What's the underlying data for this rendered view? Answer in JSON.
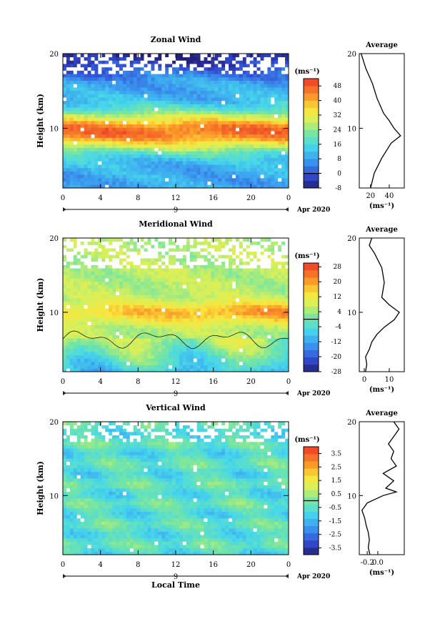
{
  "figure": {
    "xlabel": "Local Time",
    "date_label": "Apr 2020",
    "day_label": "9",
    "unit_label": "(ms⁻¹)",
    "average_title": "Average",
    "ylabel": "Height (km)"
  },
  "chart_data": [
    {
      "type": "heatmap",
      "title": "Zonal Wind",
      "ylabel": "Height (km)",
      "xlabel": "",
      "xlim": [
        0,
        24
      ],
      "ylim": [
        2,
        20
      ],
      "x_ticks": [
        "0",
        "4",
        "8",
        "12",
        "16",
        "20",
        "0"
      ],
      "y_ticks": [
        "10",
        "20"
      ],
      "colorbar": {
        "label": "(ms⁻¹)",
        "range": [
          -8,
          52
        ],
        "ticks": [
          "48",
          "40",
          "32",
          "24",
          "16",
          "8",
          "0",
          "-8"
        ]
      },
      "profile": {
        "heights_km": [
          2,
          4,
          6,
          8,
          9,
          10,
          11,
          12,
          14,
          16,
          18,
          20
        ],
        "values": [
          20,
          24,
          32,
          42,
          52,
          45,
          40,
          34,
          27,
          22,
          15,
          10
        ]
      },
      "average": {
        "title": "Average",
        "xlim": [
          8,
          56
        ],
        "x_ticks": [
          "20",
          "40"
        ],
        "xlabel": "(ms⁻¹)",
        "y_ticks": [
          "10",
          "20"
        ]
      }
    },
    {
      "type": "heatmap",
      "title": "Meridional Wind",
      "ylabel": "Height (km)",
      "xlabel": "",
      "xlim": [
        0,
        24
      ],
      "ylim": [
        2,
        20
      ],
      "x_ticks": [
        "0",
        "4",
        "8",
        "12",
        "16",
        "20",
        "0"
      ],
      "y_ticks": [
        "10",
        "20"
      ],
      "colorbar": {
        "label": "(ms⁻¹)",
        "range": [
          -28,
          30
        ],
        "ticks": [
          "28",
          "20",
          "12",
          "4",
          "-4",
          "-12",
          "-20",
          "-28"
        ]
      },
      "profile": {
        "heights_km": [
          2,
          3,
          4,
          5,
          6,
          7,
          8,
          9,
          10,
          11,
          12,
          14,
          16,
          18,
          19,
          20
        ],
        "values": [
          0.5,
          1,
          0.5,
          2,
          3,
          5,
          8,
          12,
          14,
          10,
          7,
          8,
          7,
          4,
          2,
          3
        ]
      },
      "average": {
        "title": "Average",
        "xlim": [
          -2,
          16
        ],
        "x_ticks": [
          "0",
          "10"
        ],
        "xlabel": "(ms⁻¹)",
        "y_ticks": [
          "10",
          "20"
        ]
      }
    },
    {
      "type": "heatmap",
      "title": "Vertical Wind",
      "ylabel": "Height (km)",
      "xlabel": "Local Time",
      "xlim": [
        0,
        24
      ],
      "ylim": [
        2,
        20
      ],
      "x_ticks": [
        "0",
        "4",
        "8",
        "12",
        "16",
        "20",
        "0"
      ],
      "y_ticks": [
        "10",
        "20"
      ],
      "colorbar": {
        "label": "(ms⁻¹)",
        "range": [
          -4,
          4
        ],
        "ticks": [
          "3.5",
          "2.5",
          "1.5",
          "0.5",
          "-0.5",
          "-1.5",
          "-2.5",
          "-3.5"
        ]
      },
      "profile": {
        "heights_km": [
          2,
          3,
          4,
          5,
          6,
          7,
          8,
          9,
          10,
          10.5,
          11,
          12,
          13,
          14,
          15,
          16,
          17,
          18,
          19,
          20
        ],
        "values": [
          -0.15,
          -0.18,
          -0.16,
          -0.18,
          -0.22,
          -0.25,
          -0.3,
          -0.2,
          0.1,
          0.35,
          0.15,
          0.3,
          0.1,
          0.35,
          0.25,
          0.3,
          0.2,
          0.3,
          0.4,
          0.3
        ]
      },
      "average": {
        "title": "Average",
        "xlim": [
          -0.35,
          0.5
        ],
        "x_ticks": [
          "-0.2",
          "0.0"
        ],
        "xlabel": "(ms⁻¹)",
        "y_ticks": [
          "10",
          "20"
        ]
      }
    }
  ]
}
